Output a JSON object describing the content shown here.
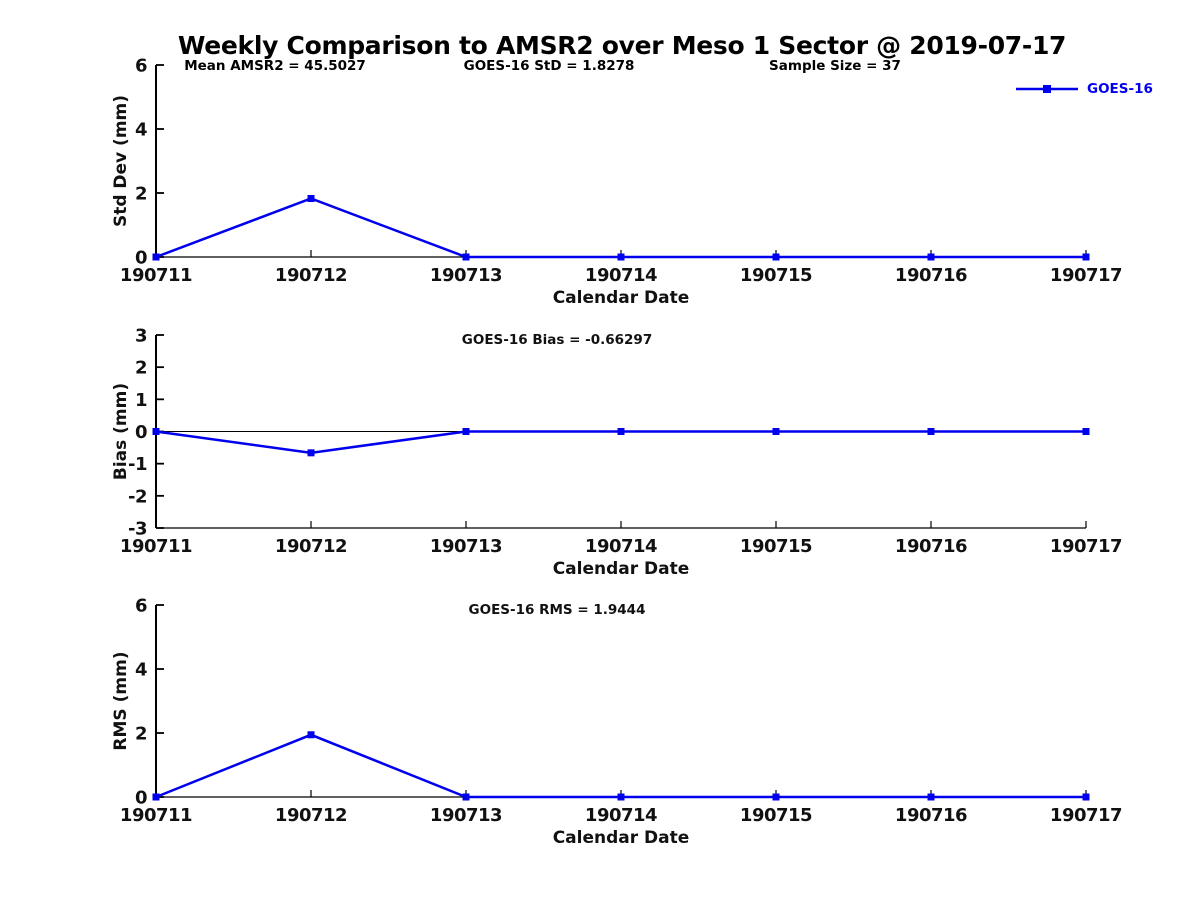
{
  "title": "Weekly Comparison to AMSR2 over Meso 1 Sector @ 2019-07-17",
  "annotations": {
    "mean_amsr2": "Mean AMSR2 = 45.5027",
    "goes16_std": "GOES-16 StD = 1.8278",
    "sample_size": "Sample Size = 37"
  },
  "legend": {
    "label": "GOES-16",
    "color": "#0000EE",
    "marker": "square",
    "position": "top-right-outside"
  },
  "chart_data": [
    {
      "type": "line",
      "id": "stddev",
      "title": "",
      "xlabel": "Calendar Date",
      "ylabel": "Std Dev (mm)",
      "categories": [
        "190711",
        "190712",
        "190713",
        "190714",
        "190715",
        "190716",
        "190717"
      ],
      "series": [
        {
          "name": "GOES-16",
          "color": "#0000EE",
          "values": [
            0,
            1.8278,
            0,
            0,
            0,
            0,
            0
          ]
        }
      ],
      "ylim": [
        0,
        6
      ],
      "yticks": [
        0,
        2,
        4,
        6
      ],
      "grid": false
    },
    {
      "type": "line",
      "id": "bias",
      "title": "GOES-16 Bias  = -0.66297",
      "xlabel": "Calendar Date",
      "ylabel": "Bias (mm)",
      "categories": [
        "190711",
        "190712",
        "190713",
        "190714",
        "190715",
        "190716",
        "190717"
      ],
      "series": [
        {
          "name": "GOES-16",
          "color": "#0000EE",
          "values": [
            0,
            -0.66297,
            0,
            0,
            0,
            0,
            0
          ]
        }
      ],
      "ylim": [
        -3,
        3
      ],
      "yticks": [
        -3,
        -2,
        -1,
        0,
        1,
        2,
        3
      ],
      "zero_line_at": 0,
      "grid": false
    },
    {
      "type": "line",
      "id": "rms",
      "title": "GOES-16 RMS = 1.9444",
      "xlabel": "Calendar Date",
      "ylabel": "RMS (mm)",
      "categories": [
        "190711",
        "190712",
        "190713",
        "190714",
        "190715",
        "190716",
        "190717"
      ],
      "series": [
        {
          "name": "GOES-16",
          "color": "#0000EE",
          "values": [
            0,
            1.9444,
            0,
            0,
            0,
            0,
            0
          ]
        }
      ],
      "ylim": [
        0,
        6
      ],
      "yticks": [
        0,
        2,
        4,
        6
      ],
      "grid": false
    }
  ]
}
